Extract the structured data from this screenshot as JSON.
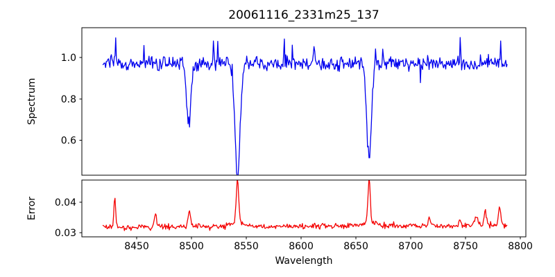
{
  "figure": {
    "title": "20061116_2331m25_137",
    "xlabel": "Wavelength",
    "ylabel_top": "Spectrum",
    "ylabel_bottom": "Error"
  },
  "chart_data": {
    "type": "line",
    "title": "20061116_2331m25_137",
    "xlabel": "Wavelength",
    "grid": false,
    "legend": null,
    "x_range": [
      8400,
      8805
    ],
    "x_ticks": [
      8450,
      8500,
      8550,
      8600,
      8650,
      8700,
      8750,
      8800
    ],
    "x_tick_labels": [
      "8450",
      "8500",
      "8550",
      "8600",
      "8650",
      "8700",
      "8750",
      "8800"
    ],
    "random_seed": 20061116,
    "panels": [
      {
        "name": "spectrum",
        "ylabel": "Spectrum",
        "ylim": [
          0.43,
          1.145
        ],
        "y_ticks": [
          1.0,
          0.8,
          0.6
        ],
        "y_tick_labels": [
          "1.0",
          "0.8",
          "0.6"
        ],
        "line_color": "#0000ee",
        "height_ratio": 2.6,
        "series": {
          "x_start": 8419,
          "x_end": 8788,
          "n_points": 560,
          "continuum": 0.972,
          "noise_sigma": 0.017,
          "spike_prob": 0.018,
          "spike_amp": 0.11,
          "absorption_lines": [
            {
              "center": 8497.5,
              "depth": 0.3,
              "width": 1.9,
              "label": "dip ~8498, min ~0.68"
            },
            {
              "center": 8542.0,
              "depth": 0.54,
              "width": 2.4,
              "label": "dip ~8542, min ~0.44"
            },
            {
              "center": 8662.0,
              "depth": 0.45,
              "width": 2.2,
              "label": "dip ~8662, min ~0.53"
            }
          ],
          "spikes": [
            {
              "x": 8431,
              "amp": 0.115
            },
            {
              "x": 8520,
              "amp": 0.125
            },
            {
              "x": 8524,
              "amp": 0.09
            },
            {
              "x": 8585,
              "amp": 0.1
            },
            {
              "x": 8612,
              "amp": 0.08
            },
            {
              "x": 8668,
              "amp": 0.105
            },
            {
              "x": 8745,
              "amp": 0.09
            },
            {
              "x": 8782,
              "amp": 0.1
            }
          ]
        }
      },
      {
        "name": "error",
        "ylabel": "Error",
        "ylim": [
          0.0286,
          0.0473
        ],
        "y_ticks": [
          0.04,
          0.03
        ],
        "y_tick_labels": [
          "0.04",
          "0.03"
        ],
        "line_color": "#f40000",
        "height_ratio": 1,
        "series": {
          "x_start": 8419,
          "x_end": 8788,
          "n_points": 560,
          "baseline": 0.0318,
          "baseline_slope": 0.0005,
          "noise_sigma": 0.00042,
          "spike_prob": 0.012,
          "spike_amp": 0.0018,
          "bumps": [
            {
              "center": 8430,
              "amp": 0.0102,
              "width": 0.8
            },
            {
              "center": 8467,
              "amp": 0.004,
              "width": 1.1
            },
            {
              "center": 8498,
              "amp": 0.0048,
              "width": 1.2
            },
            {
              "center": 8542,
              "amp": 0.014,
              "width": 1.1
            },
            {
              "center": 8542,
              "amp": 0.0015,
              "width": 6.0
            },
            {
              "center": 8662,
              "amp": 0.0148,
              "width": 1.0
            },
            {
              "center": 8662,
              "amp": 0.0015,
              "width": 6.0
            },
            {
              "center": 8717,
              "amp": 0.0026,
              "width": 1.0
            },
            {
              "center": 8745,
              "amp": 0.002,
              "width": 1.0
            },
            {
              "center": 8760,
              "amp": 0.0034,
              "width": 1.4
            },
            {
              "center": 8768,
              "amp": 0.005,
              "width": 1.0
            },
            {
              "center": 8781,
              "amp": 0.0062,
              "width": 1.1
            }
          ]
        }
      }
    ]
  }
}
